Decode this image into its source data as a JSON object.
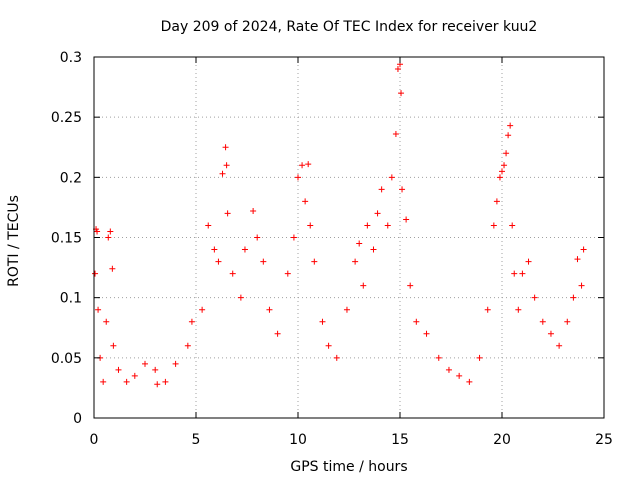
{
  "chart_data": {
    "type": "scatter",
    "title": "Day 209 of 2024, Rate Of TEC Index for receiver kuu2",
    "xlabel": "GPS time / hours",
    "ylabel": "ROTI / TECUs",
    "xlim": [
      0,
      25
    ],
    "ylim": [
      0,
      0.3
    ],
    "xticks": [
      "0",
      "5",
      "10",
      "15",
      "20",
      "25"
    ],
    "yticks": [
      "0",
      "0.05",
      "0.1",
      "0.15",
      "0.2",
      "0.25",
      "0.3"
    ],
    "grid": true,
    "marker": "+",
    "color": "#ff0000",
    "series": [
      {
        "x": [
          0.05,
          0.1,
          0.15,
          0.2,
          0.3,
          0.45,
          0.6,
          0.7,
          0.8,
          0.9,
          0.95,
          1.2,
          1.6,
          2.0,
          2.5,
          3.0,
          3.1,
          3.5,
          4.0,
          4.6,
          4.8,
          5.3,
          5.6,
          5.9,
          6.1,
          6.3,
          6.45,
          6.5,
          6.55,
          6.8,
          7.2,
          7.4,
          7.8,
          8.0,
          8.3,
          8.6,
          9.0,
          9.5,
          9.8,
          10.0,
          10.2,
          10.35,
          10.5,
          10.6,
          10.8,
          11.2,
          11.5,
          11.9,
          12.4,
          12.8,
          13.0,
          13.2,
          13.4,
          13.7,
          13.9,
          14.1,
          14.4,
          14.6,
          14.8,
          14.9,
          15.0,
          15.05,
          15.1,
          15.3,
          15.5,
          15.8,
          16.3,
          16.9,
          17.4,
          17.9,
          18.4,
          18.9,
          19.3,
          19.6,
          19.75,
          19.9,
          20.0,
          20.1,
          20.2,
          20.3,
          20.4,
          20.5,
          20.6,
          20.8,
          21.0,
          21.3,
          21.6,
          22.0,
          22.4,
          22.8,
          23.2,
          23.5,
          23.7,
          23.9,
          24.0
        ],
        "y": [
          0.12,
          0.157,
          0.155,
          0.09,
          0.05,
          0.03,
          0.08,
          0.15,
          0.155,
          0.124,
          0.06,
          0.04,
          0.03,
          0.035,
          0.045,
          0.04,
          0.028,
          0.03,
          0.045,
          0.06,
          0.08,
          0.09,
          0.16,
          0.14,
          0.13,
          0.203,
          0.225,
          0.21,
          0.17,
          0.12,
          0.1,
          0.14,
          0.172,
          0.15,
          0.13,
          0.09,
          0.07,
          0.12,
          0.15,
          0.2,
          0.21,
          0.18,
          0.211,
          0.16,
          0.13,
          0.08,
          0.06,
          0.05,
          0.09,
          0.13,
          0.145,
          0.11,
          0.16,
          0.14,
          0.17,
          0.19,
          0.16,
          0.2,
          0.236,
          0.29,
          0.294,
          0.27,
          0.19,
          0.165,
          0.11,
          0.08,
          0.07,
          0.05,
          0.04,
          0.035,
          0.03,
          0.05,
          0.09,
          0.16,
          0.18,
          0.2,
          0.205,
          0.21,
          0.22,
          0.235,
          0.243,
          0.16,
          0.12,
          0.09,
          0.12,
          0.13,
          0.1,
          0.08,
          0.07,
          0.06,
          0.08,
          0.1,
          0.132,
          0.11,
          0.14
        ]
      }
    ]
  }
}
